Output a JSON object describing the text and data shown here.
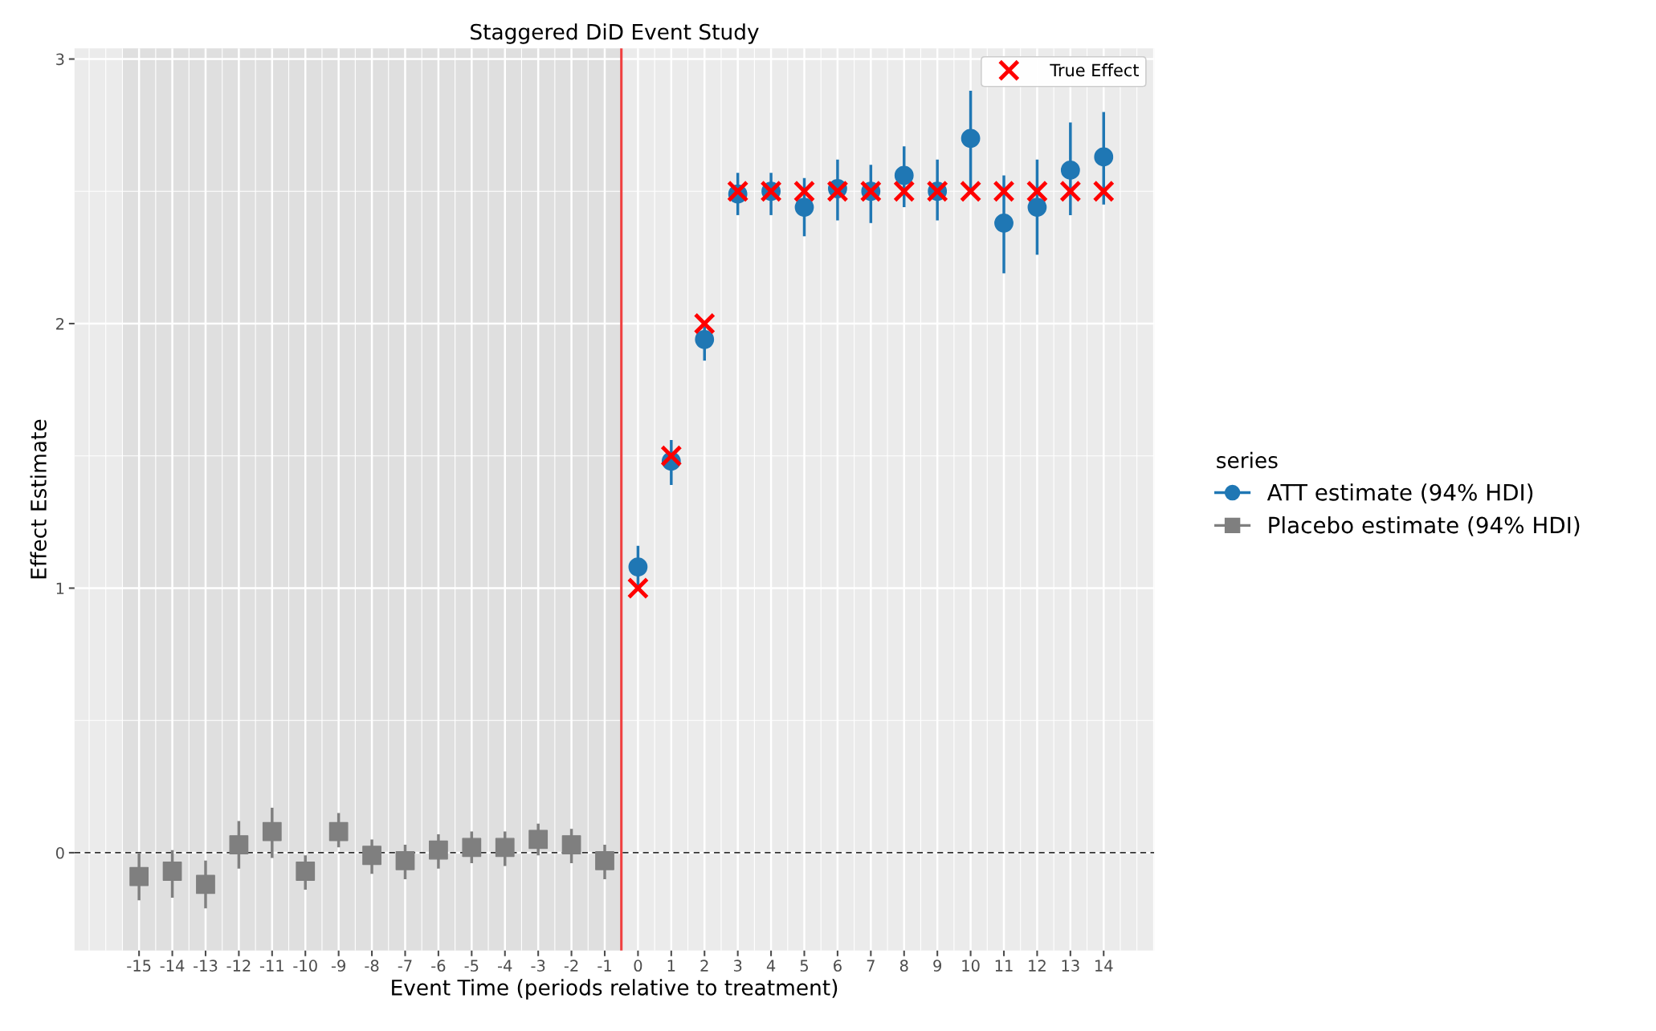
{
  "chart_data": {
    "type": "scatter",
    "title": "Staggered DiD Event Study",
    "xlabel": "Event Time (periods relative to treatment)",
    "ylabel": "Effect Estimate",
    "legend_title": "series",
    "xlim": [
      -16.94,
      15.52
    ],
    "ylim": [
      -0.37,
      3.04
    ],
    "xticks": [
      -15,
      -14,
      -13,
      -12,
      -11,
      -10,
      -9,
      -8,
      -7,
      -6,
      -5,
      -4,
      -3,
      -2,
      -1,
      0,
      1,
      2,
      3,
      4,
      5,
      6,
      7,
      8,
      9,
      10,
      11,
      12,
      13,
      14
    ],
    "yticks": [
      0,
      1,
      2,
      3
    ],
    "grid": true,
    "legend": "right",
    "bands": [
      {
        "axis": "x",
        "from": -15.5,
        "to": -0.5,
        "color": "#dfdfdf"
      }
    ],
    "ref_lines": [
      {
        "axis": "x",
        "value": -0.5,
        "color": "#f04040",
        "line_style": "solid"
      },
      {
        "axis": "y",
        "value": 0,
        "color": "#333333",
        "line_style": "dashed"
      }
    ],
    "series": [
      {
        "name": "ATT estimate (94% HDI)",
        "color": "#1f77b4",
        "marker": "circle",
        "x": [
          0,
          1,
          2,
          3,
          4,
          5,
          6,
          7,
          8,
          9,
          10,
          11,
          12,
          13,
          14
        ],
        "values": [
          1.08,
          1.48,
          1.94,
          2.49,
          2.5,
          2.44,
          2.51,
          2.5,
          2.56,
          2.5,
          2.7,
          2.38,
          2.44,
          2.58,
          2.63
        ],
        "errors": [
          [
            1.01,
            1.16
          ],
          [
            1.39,
            1.56
          ],
          [
            1.86,
            1.99
          ],
          [
            2.41,
            2.57
          ],
          [
            2.41,
            2.57
          ],
          [
            2.33,
            2.55
          ],
          [
            2.39,
            2.62
          ],
          [
            2.38,
            2.6
          ],
          [
            2.44,
            2.67
          ],
          [
            2.39,
            2.62
          ],
          [
            2.5,
            2.88
          ],
          [
            2.19,
            2.56
          ],
          [
            2.26,
            2.62
          ],
          [
            2.41,
            2.76
          ],
          [
            2.45,
            2.8
          ]
        ]
      },
      {
        "name": "Placebo estimate (94% HDI)",
        "color": "#7f7f7f",
        "marker": "square",
        "x": [
          -15,
          -14,
          -13,
          -12,
          -11,
          -10,
          -9,
          -8,
          -7,
          -6,
          -5,
          -4,
          -3,
          -2,
          -1
        ],
        "values": [
          -0.09,
          -0.07,
          -0.12,
          0.03,
          0.08,
          -0.07,
          0.08,
          -0.01,
          -0.03,
          0.01,
          0.02,
          0.02,
          0.05,
          0.03,
          -0.03
        ],
        "errors": [
          [
            -0.18,
            0.0
          ],
          [
            -0.17,
            0.01
          ],
          [
            -0.21,
            -0.03
          ],
          [
            -0.06,
            0.12
          ],
          [
            -0.02,
            0.17
          ],
          [
            -0.14,
            -0.01
          ],
          [
            0.02,
            0.15
          ],
          [
            -0.08,
            0.05
          ],
          [
            -0.1,
            0.03
          ],
          [
            -0.06,
            0.07
          ],
          [
            -0.04,
            0.08
          ],
          [
            -0.05,
            0.08
          ],
          [
            -0.01,
            0.11
          ],
          [
            -0.04,
            0.09
          ],
          [
            -0.1,
            0.03
          ]
        ]
      },
      {
        "name": "True Effect",
        "color": "#ff0000",
        "marker": "cross",
        "x": [
          0,
          1,
          2,
          3,
          4,
          5,
          6,
          7,
          8,
          9,
          10,
          11,
          12,
          13,
          14
        ],
        "values": [
          1,
          1.5,
          2,
          2.5,
          2.5,
          2.5,
          2.5,
          2.5,
          2.5,
          2.5,
          2.5,
          2.5,
          2.5,
          2.5,
          2.5
        ]
      }
    ]
  }
}
